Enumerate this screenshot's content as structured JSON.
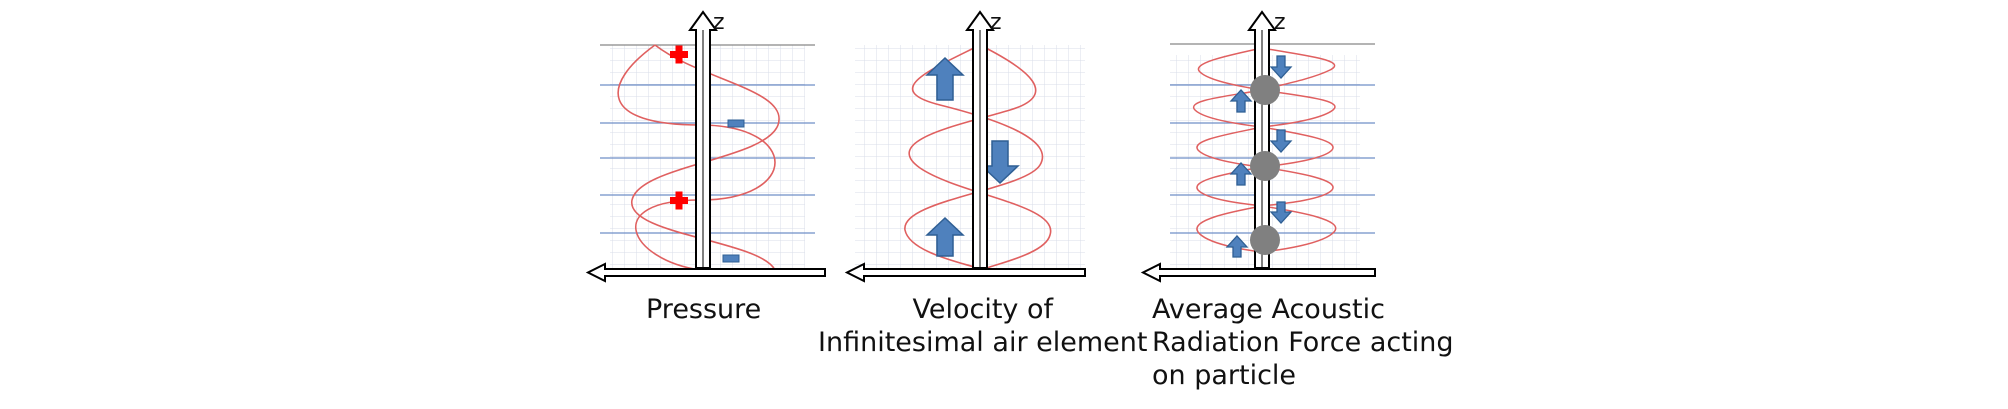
{
  "panels": [
    {
      "id": "pressure",
      "axis_label": "z",
      "caption_lines": [
        "Pressure"
      ],
      "plus_markers": 2,
      "minus_markers": 2
    },
    {
      "id": "velocity",
      "axis_label": "z",
      "caption_lines": [
        "Velocity of",
        "Infinitesimal air element"
      ],
      "up_arrows": 2,
      "down_arrows": 1
    },
    {
      "id": "radiation-force",
      "axis_label": "z",
      "caption_lines": [
        "Average Acoustic",
        "Radiation Force acting",
        "on particle"
      ],
      "particles": 3,
      "up_arrows": 3,
      "down_arrows": 3
    }
  ],
  "colors": {
    "wave": "#e06060",
    "grid": "#d8dde8",
    "hline": "#6f8fc8",
    "arrow_fill": "#4f81bd",
    "arrow_stroke": "#2f5f94",
    "plus": "#ff0000",
    "particle": "#808080",
    "axis": "#000000"
  }
}
